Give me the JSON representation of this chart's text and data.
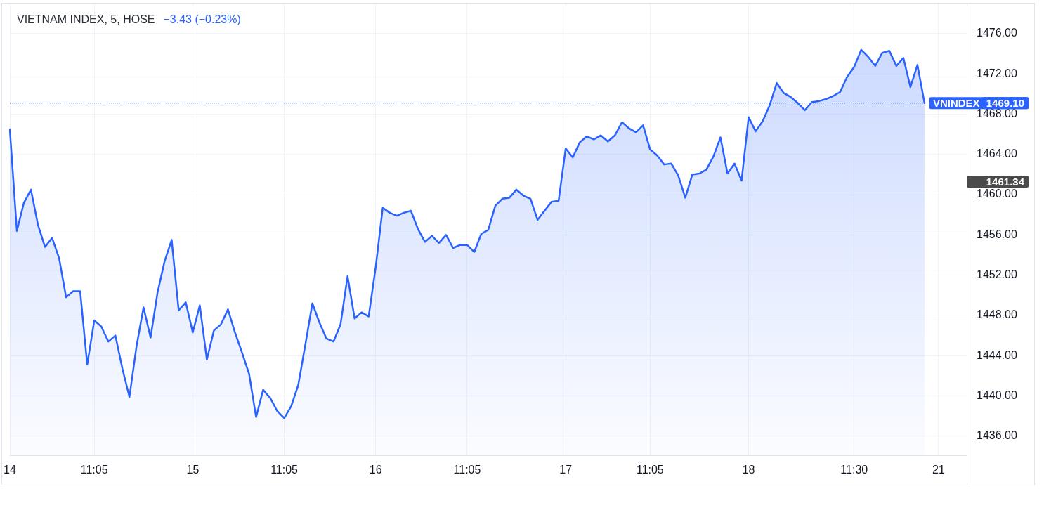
{
  "chart_data": {
    "type": "area",
    "title": "VIETNAM INDEX, 5, HOSE",
    "subtitle": "−3.43 (−0.23%)",
    "categories": [
      "14",
      null,
      null,
      null,
      null,
      null,
      null,
      null,
      null,
      null,
      null,
      null,
      "11:05",
      null,
      null,
      null,
      null,
      null,
      null,
      null,
      null,
      null,
      null,
      null,
      null,
      null,
      "15",
      null,
      null,
      null,
      null,
      null,
      null,
      null,
      null,
      null,
      null,
      null,
      null,
      "11:05",
      null,
      null,
      null,
      null,
      null,
      null,
      null,
      null,
      null,
      null,
      null,
      null,
      "16",
      null,
      null,
      null,
      null,
      null,
      null,
      null,
      null,
      null,
      null,
      null,
      null,
      "11:05",
      null,
      null,
      null,
      null,
      null,
      null,
      null,
      null,
      null,
      null,
      null,
      null,
      null,
      "17",
      null,
      null,
      null,
      null,
      null,
      null,
      null,
      null,
      null,
      null,
      null,
      "11:05",
      null,
      null,
      null,
      null,
      null,
      null,
      null,
      null,
      null,
      null,
      null,
      null,
      null,
      "18",
      null,
      null,
      null,
      null,
      null,
      null,
      null,
      null,
      null,
      null,
      null,
      null,
      null,
      null,
      "11:30",
      null,
      null,
      null,
      null,
      null,
      null,
      null,
      null,
      null,
      null,
      null,
      "21",
      null,
      null,
      null,
      null
    ],
    "series": [
      {
        "name": "VNINDEX",
        "color": "#2962ff",
        "values": [
          1466.5,
          1456.4,
          1459.2,
          1460.5,
          1457.0,
          1454.8,
          1455.7,
          1453.7,
          1449.8,
          1450.4,
          1450.4,
          1443.1,
          1447.5,
          1446.9,
          1445.4,
          1446.0,
          1442.7,
          1439.9,
          1444.9,
          1448.8,
          1445.8,
          1450.3,
          1453.4,
          1455.5,
          1448.5,
          1449.3,
          1446.3,
          1449.0,
          1443.6,
          1446.5,
          1447.1,
          1448.6,
          1446.3,
          1444.3,
          1442.2,
          1437.9,
          1440.6,
          1439.8,
          1438.5,
          1437.8,
          1439.0,
          1441.1,
          1445.1,
          1449.2,
          1447.3,
          1445.7,
          1445.4,
          1447.1,
          1451.9,
          1447.7,
          1448.3,
          1447.9,
          1452.8,
          1458.7,
          1458.2,
          1457.9,
          1458.2,
          1458.4,
          1456.6,
          1455.3,
          1455.9,
          1455.2,
          1456.0,
          1454.7,
          1455.0,
          1455.0,
          1454.3,
          1456.1,
          1456.5,
          1458.9,
          1459.6,
          1459.7,
          1460.5,
          1459.9,
          1459.6,
          1457.5,
          1458.4,
          1459.3,
          1459.4,
          1464.6,
          1463.7,
          1465.2,
          1465.8,
          1465.5,
          1465.9,
          1465.3,
          1465.9,
          1467.2,
          1466.6,
          1466.2,
          1466.9,
          1464.5,
          1463.9,
          1463.0,
          1463.1,
          1461.9,
          1459.7,
          1462.0,
          1462.1,
          1462.5,
          1463.8,
          1465.7,
          1462.1,
          1463.1,
          1461.4,
          1467.7,
          1466.3,
          1467.3,
          1468.9,
          1471.1,
          1470.1,
          1469.7,
          1469.1,
          1468.4,
          1469.2,
          1469.3,
          1469.5,
          1469.8,
          1470.2,
          1471.7,
          1472.7,
          1474.4,
          1473.7,
          1472.8,
          1474.1,
          1474.3,
          1472.8,
          1473.6,
          1470.7,
          1472.9,
          1469.1,
          null,
          null,
          null,
          null,
          null,
          null
        ]
      }
    ],
    "ylim": [
      1434.1,
      1479.0
    ],
    "yticks": [
      {
        "value": 1436,
        "label": "1436.00"
      },
      {
        "value": 1440,
        "label": "1440.00"
      },
      {
        "value": 1444,
        "label": "1444.00"
      },
      {
        "value": 1448,
        "label": "1448.00"
      },
      {
        "value": 1452,
        "label": "1452.00"
      },
      {
        "value": 1456,
        "label": "1456.00"
      },
      {
        "value": 1460,
        "label": "1460.00"
      },
      {
        "value": 1464,
        "label": "1464.00"
      },
      {
        "value": 1468,
        "label": "1468.00"
      },
      {
        "value": 1472,
        "label": "1472.00"
      },
      {
        "value": 1476,
        "label": "1476.00"
      }
    ],
    "grid": true,
    "ref_lines": [
      {
        "axis": "y",
        "value": 1469.1,
        "label": "1469.10",
        "line_style": "dotted",
        "color": "#2962ff"
      }
    ],
    "annotations": [
      "1461.34"
    ]
  }
}
